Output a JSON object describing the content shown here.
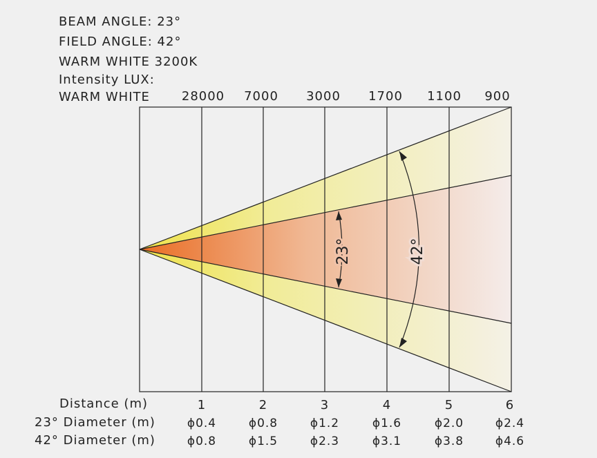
{
  "header": {
    "beam_angle": "BEAM ANGLE: 23°",
    "field_angle": "FIELD ANGLE: 42°",
    "color_temp": "WARM WHITE 3200K",
    "intensity_title": "Intensity LUX:",
    "row_label": "WARM WHITE"
  },
  "lux_values": [
    "28000",
    "7000",
    "3000",
    "1700",
    "1100",
    "900"
  ],
  "angles": {
    "beam": "23°",
    "field": "42°"
  },
  "distance": {
    "label": "Distance (m)",
    "values": [
      "1",
      "2",
      "3",
      "4",
      "5",
      "6"
    ]
  },
  "diameter_beam": {
    "label": "23° Diameter (m)",
    "values": [
      "ϕ0.4",
      "ϕ0.8",
      "ϕ1.2",
      "ϕ1.6",
      "ϕ2.0",
      "ϕ2.4"
    ]
  },
  "diameter_field": {
    "label": "42° Diameter (m)",
    "values": [
      "ϕ0.8",
      "ϕ1.5",
      "ϕ2.3",
      "ϕ3.1",
      "ϕ3.8",
      "ϕ4.6"
    ]
  },
  "colors": {
    "field_fill": "#f2ee9e",
    "beam_near": "#ec7a36",
    "beam_far": "#f3e3df"
  }
}
